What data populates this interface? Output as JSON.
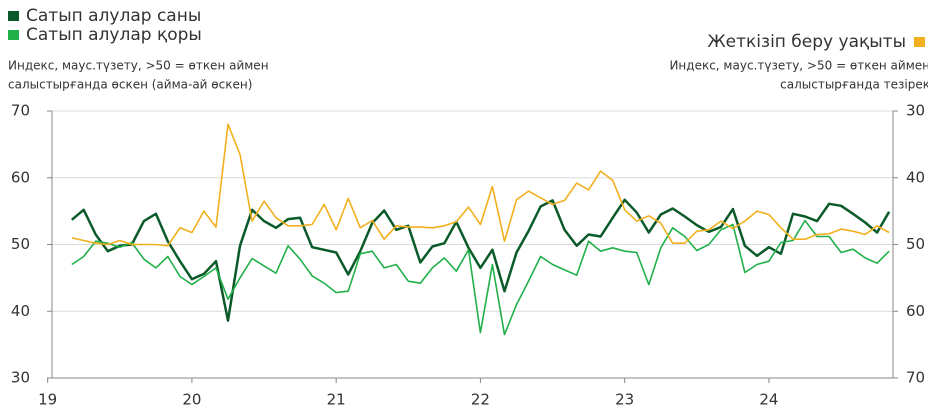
{
  "chart_data": {
    "type": "line",
    "subtitle_left": [
      "Индекс, маус.түзету, >50 = өткен аймен",
      "салыстырғанда өскен (айма-ай өскен)"
    ],
    "subtitle_right": [
      "Индекс, маус.түзету, >50 = өткен аймен",
      "салыстырғанда тезірек"
    ],
    "x": [
      2019.167,
      2019.25,
      2019.333,
      2019.417,
      2019.5,
      2019.583,
      2019.667,
      2019.75,
      2019.833,
      2019.917,
      2020.0,
      2020.083,
      2020.167,
      2020.25,
      2020.333,
      2020.417,
      2020.5,
      2020.583,
      2020.667,
      2020.75,
      2020.833,
      2020.917,
      2021.0,
      2021.083,
      2021.167,
      2021.25,
      2021.333,
      2021.417,
      2021.5,
      2021.583,
      2021.667,
      2021.75,
      2021.833,
      2021.917,
      2022.0,
      2022.083,
      2022.167,
      2022.25,
      2022.333,
      2022.417,
      2022.5,
      2022.583,
      2022.667,
      2022.75,
      2022.833,
      2022.917,
      2023.0,
      2023.083,
      2023.167,
      2023.25,
      2023.333,
      2023.417,
      2023.5,
      2023.583,
      2023.667,
      2023.75,
      2023.833,
      2023.917,
      2024.0,
      2024.083,
      2024.167,
      2024.25,
      2024.333,
      2024.417,
      2024.5,
      2024.583,
      2024.667,
      2024.75,
      2024.833
    ],
    "series": [
      {
        "name": "Сатып алулар саны",
        "color": "#0b5a2a",
        "values": [
          53.7,
          55.2,
          51.5,
          49.0,
          49.8,
          50.0,
          53.5,
          54.6,
          50.5,
          47.5,
          44.8,
          45.6,
          47.5,
          38.6,
          49.8,
          55.2,
          53.5,
          52.5,
          53.8,
          54.0,
          49.6,
          49.2,
          48.8,
          45.5,
          49.0,
          53.2,
          55.1,
          52.2,
          52.8,
          47.3,
          49.7,
          50.2,
          53.4,
          49.5,
          46.5,
          49.2,
          43.0,
          48.8,
          52.0,
          55.7,
          56.6,
          52.2,
          49.8,
          51.5,
          51.2,
          54.0,
          56.7,
          54.8,
          51.8,
          54.5,
          55.4,
          54.2,
          52.9,
          51.9,
          52.6,
          55.3,
          49.8,
          48.3,
          49.6,
          48.6,
          54.6,
          54.2,
          53.5,
          56.1,
          55.8,
          54.6,
          53.3,
          51.8,
          54.9
        ]
      },
      {
        "name": "Сатып алулар қоры",
        "color": "#22b04b",
        "values": [
          47.0,
          48.2,
          50.5,
          50.2,
          49.6,
          50.3,
          47.8,
          46.5,
          48.2,
          45.2,
          44.0,
          45.2,
          46.5,
          41.8,
          45.0,
          47.9,
          46.8,
          45.7,
          49.8,
          47.8,
          45.3,
          44.2,
          42.8,
          43.0,
          48.6,
          49.0,
          46.5,
          47.0,
          44.5,
          44.2,
          46.5,
          48.0,
          46.0,
          49.2,
          36.8,
          47.0,
          36.5,
          41.0,
          44.5,
          48.2,
          47.0,
          46.2,
          45.4,
          50.5,
          49.0,
          49.5,
          49.0,
          48.8,
          44.0,
          49.5,
          52.5,
          51.2,
          49.1,
          50.0,
          52.2,
          53.0,
          45.8,
          47.0,
          47.5,
          50.3,
          50.6,
          53.6,
          51.2,
          51.2,
          48.8,
          49.3,
          48.0,
          47.2,
          49.0
        ]
      },
      {
        "name": "Жеткізіп беру уақыты",
        "color": "#f2b01e",
        "axis": "y2",
        "values": [
          49.0,
          49.4,
          49.8,
          50.0,
          49.4,
          50.0,
          50.0,
          50.0,
          50.2,
          47.5,
          48.2,
          45.0,
          47.4,
          32.0,
          36.5,
          46.5,
          43.5,
          46.0,
          47.2,
          47.2,
          47.0,
          44.0,
          47.8,
          43.1,
          47.5,
          46.4,
          49.2,
          47.2,
          47.4,
          47.4,
          47.5,
          47.2,
          46.6,
          44.4,
          47.0,
          41.3,
          49.5,
          43.3,
          42.0,
          43.0,
          44.0,
          43.4,
          40.8,
          41.8,
          39.0,
          40.4,
          44.8,
          46.5,
          45.7,
          46.8,
          49.8,
          49.8,
          48.0,
          47.8,
          46.5,
          47.6,
          46.5,
          45.0,
          45.5,
          47.5,
          49.2,
          49.2,
          48.5,
          48.4,
          47.7,
          48.0,
          48.5,
          47.2,
          48.2
        ]
      }
    ],
    "xlim": [
      2019.03,
      2024.86
    ],
    "xticks": [
      {
        "value": 2019,
        "label": "19"
      },
      {
        "value": 2020,
        "label": "20"
      },
      {
        "value": 2021,
        "label": "21"
      },
      {
        "value": 2022,
        "label": "22"
      },
      {
        "value": 2023,
        "label": "23"
      },
      {
        "value": 2024,
        "label": "24"
      }
    ],
    "ylim": [
      30,
      70
    ],
    "yticks": [
      30,
      40,
      50,
      60,
      70
    ],
    "y2lim": [
      30,
      70
    ],
    "y2ticks": [
      30,
      40,
      50,
      60,
      70
    ],
    "y2_inverted": true,
    "grid": true
  }
}
